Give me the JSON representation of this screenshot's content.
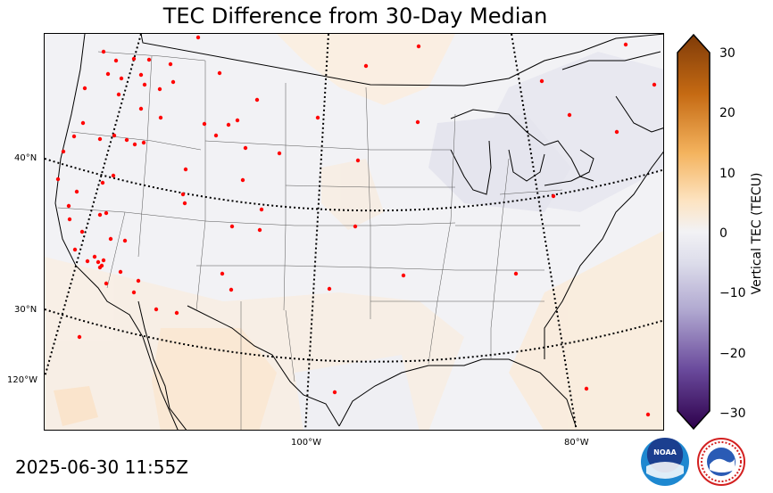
{
  "title": "TEC Difference from 30-Day Median",
  "timestamp": "2025-06-30 11:55Z",
  "colorbar": {
    "label": "Vertical TEC (TECU)",
    "ticks": [
      "30",
      "20",
      "10",
      "0",
      "−10",
      "−20",
      "−30"
    ],
    "range": [
      -30,
      30
    ]
  },
  "graticule": {
    "lat_labels": [
      "40°N",
      "30°N",
      "120°W"
    ],
    "lon_labels": [
      "100°W",
      "80°W"
    ]
  },
  "logos": {
    "noaa_text": "NOAA",
    "nws_icon": "nws-logo-icon",
    "noaa_icon": "noaa-logo-icon"
  },
  "colors": {
    "positive": "#8b4513",
    "negative": "#2d0a4e",
    "neutral": "#f2f2f5",
    "stations": "#ff0000"
  }
}
